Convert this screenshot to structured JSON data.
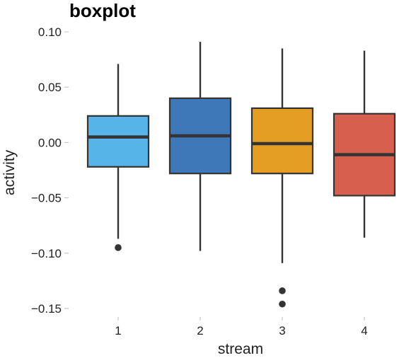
{
  "chart_data": {
    "type": "boxplot",
    "title": "boxplot",
    "xlabel": "stream",
    "ylabel": "activity",
    "categories": [
      "1",
      "2",
      "3",
      "4"
    ],
    "ylim": [
      -0.16,
      0.1
    ],
    "y_ticks": [
      0.1,
      0.05,
      0.0,
      -0.05,
      -0.1,
      -0.15
    ],
    "y_tick_labels": [
      "0.10",
      "0.05",
      "0.00",
      "−0.05",
      "−0.10",
      "−0.15"
    ],
    "grid": false,
    "legend": "none",
    "boxes": [
      {
        "category": "1",
        "whisker_low": -0.087,
        "q1": -0.022,
        "median": 0.005,
        "q3": 0.024,
        "whisker_high": 0.071,
        "outliers": [
          -0.095
        ],
        "color": "#56B4E9"
      },
      {
        "category": "2",
        "whisker_low": -0.098,
        "q1": -0.028,
        "median": 0.006,
        "q3": 0.04,
        "whisker_high": 0.091,
        "outliers": [],
        "color": "#3F78B8"
      },
      {
        "category": "3",
        "whisker_low": -0.109,
        "q1": -0.028,
        "median": -0.001,
        "q3": 0.031,
        "whisker_high": 0.085,
        "outliers": [
          -0.134,
          -0.146
        ],
        "color": "#E49E24"
      },
      {
        "category": "4",
        "whisker_low": -0.086,
        "q1": -0.048,
        "median": -0.011,
        "q3": 0.026,
        "whisker_high": 0.083,
        "outliers": [],
        "color": "#D65F4E"
      }
    ]
  }
}
